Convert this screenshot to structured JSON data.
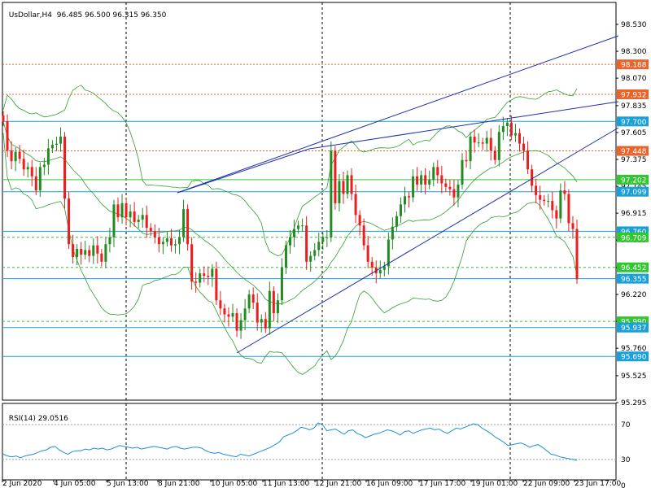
{
  "header": {
    "symbol": "UsDollar,H4",
    "ohlc": "96.485 96.500 96.315 96.350"
  },
  "rsi_header": {
    "label": "RSI(14) 29.0516"
  },
  "colors": {
    "bull": "#228b22",
    "bear": "#ee1c1c",
    "bollinger": "#2e9e2e",
    "trend": "#1c2fb0",
    "level_blue": "#1aa0d8",
    "level_red": "#e8642a",
    "level_green": "#32c632",
    "rsi": "#1e8fd6"
  },
  "chart_data": [
    {
      "type": "candlestick",
      "title": "UsDollar,H4",
      "ylim": [
        95.25,
        98.6
      ],
      "y_ticks": [
        "98.530",
        "98.300",
        "98.070",
        "97.835",
        "97.605",
        "97.375",
        "97.145",
        "96.915",
        "96.685",
        "96.450",
        "96.220",
        "95.990",
        "95.760",
        "95.525",
        "95.295"
      ],
      "x_tick_labels": [
        "2 Jun 2020",
        "4 Jun 05:00",
        "5 Jun 13:00",
        "8 Jun 21:00",
        "10 Jun 05:00",
        "11 Jun 13:00",
        "12 Jun 21:00",
        "16 Jun 09:00",
        "17 Jun 17:00",
        "19 Jun 01:00",
        "22 Jun 09:00",
        "23 Jun 17:00"
      ],
      "close_series": [
        97.7,
        97.45,
        97.36,
        97.44,
        97.38,
        97.29,
        97.31,
        97.23,
        97.11,
        97.31,
        97.33,
        97.47,
        97.5,
        97.51,
        97.57,
        97.04,
        96.65,
        96.54,
        96.61,
        96.56,
        96.6,
        96.55,
        96.64,
        96.57,
        96.5,
        96.65,
        96.71,
        96.99,
        96.88,
        97.0,
        96.88,
        96.93,
        96.84,
        96.86,
        96.9,
        96.79,
        96.76,
        96.71,
        96.65,
        96.67,
        96.7,
        96.64,
        96.65,
        96.71,
        96.95,
        96.65,
        96.33,
        96.32,
        96.4,
        96.38,
        96.37,
        96.44,
        96.17,
        96.1,
        96.05,
        96.03,
        96.06,
        95.91,
        96.0,
        96.1,
        96.22,
        96.15,
        95.98,
        96.01,
        95.93,
        96.25,
        96.06,
        96.17,
        96.45,
        96.64,
        96.71,
        96.78,
        96.81,
        96.81,
        96.5,
        96.55,
        96.6,
        96.67,
        96.71,
        96.71,
        97.45,
        97.0,
        97.19,
        97.08,
        97.24,
        97.08,
        96.9,
        96.81,
        96.64,
        96.5,
        96.45,
        96.4,
        96.43,
        96.46,
        96.69,
        96.8,
        96.89,
        96.99,
        97.06,
        97.05,
        97.23,
        97.16,
        97.24,
        97.16,
        97.2,
        97.31,
        97.24,
        97.17,
        97.14,
        97.12,
        97.05,
        97.16,
        97.37,
        97.36,
        97.57,
        97.52,
        97.52,
        97.51,
        97.56,
        97.45,
        97.37,
        97.61,
        97.66,
        97.69,
        97.58,
        97.6,
        97.51,
        97.45,
        97.29,
        97.15,
        97.07,
        97.03,
        97.02,
        97.02,
        96.94,
        96.87,
        97.11,
        97.08,
        96.83,
        96.78,
        96.35
      ],
      "overlays": {
        "bollinger_bands": "20-period bands, green",
        "trend_lines": 4,
        "horizontal_levels": [
          "98.188",
          "97.932",
          "97.700",
          "97.448",
          "97.202",
          "97.099",
          "96.760",
          "96.709",
          "96.452",
          "96.355",
          "95.990",
          "95.937",
          "95.690"
        ],
        "vertical_separators": 4
      },
      "price_labels": [
        {
          "value": "98.188",
          "style": "red"
        },
        {
          "value": "97.932",
          "style": "red"
        },
        {
          "value": "97.700",
          "style": "blue"
        },
        {
          "value": "97.448",
          "style": "red"
        },
        {
          "value": "97.202",
          "style": "green"
        },
        {
          "value": "97.099",
          "style": "blue"
        },
        {
          "value": "96.760",
          "style": "blue"
        },
        {
          "value": "96.709",
          "style": "green"
        },
        {
          "value": "96.452",
          "style": "green"
        },
        {
          "value": "96.355",
          "style": "blue"
        },
        {
          "value": "95.990",
          "style": "green"
        },
        {
          "value": "95.937",
          "style": "blue"
        },
        {
          "value": "95.690",
          "style": "blue"
        }
      ]
    },
    {
      "type": "line",
      "title": "RSI(14) 29.0516",
      "ylim": [
        0,
        100
      ],
      "y_ticks": [
        "70",
        "30",
        "0"
      ],
      "levels": [
        70,
        30
      ],
      "values": [
        36,
        34,
        33,
        34,
        32,
        34,
        35,
        36,
        38,
        40,
        41,
        44,
        45,
        41,
        38,
        36,
        39,
        40,
        40,
        42,
        41,
        43,
        42,
        43,
        41,
        42,
        44,
        46,
        45,
        44,
        43,
        44,
        42,
        43,
        44,
        45,
        44,
        43,
        42,
        44,
        45,
        43,
        42,
        43,
        44,
        44,
        43,
        40,
        38,
        37,
        38,
        36,
        35,
        34,
        33,
        36,
        35,
        34,
        36,
        38,
        40,
        42,
        44,
        47,
        50,
        56,
        58,
        60,
        63,
        67,
        66,
        64,
        66,
        72,
        70,
        63,
        64,
        65,
        62,
        59,
        63,
        64,
        60,
        58,
        55,
        57,
        59,
        60,
        62,
        64,
        63,
        61,
        58,
        62,
        63,
        60,
        62,
        64,
        65,
        66,
        64,
        65,
        62,
        60,
        63,
        66,
        65,
        67,
        69,
        71,
        70,
        66,
        63,
        60,
        56,
        53,
        50,
        46,
        47,
        48,
        49,
        47,
        44,
        46,
        47,
        44,
        40,
        36,
        35,
        33,
        32,
        31,
        30,
        29
      ]
    }
  ]
}
